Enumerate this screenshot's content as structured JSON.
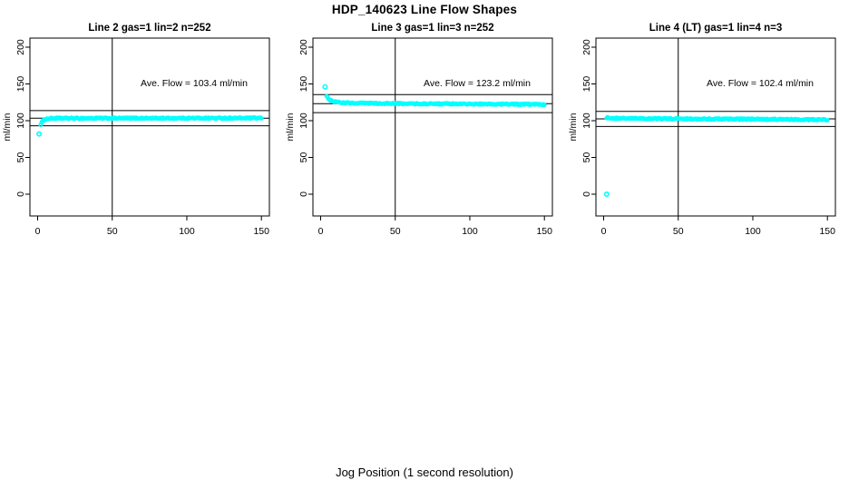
{
  "figure": {
    "title": "HDP_140623  Line Flow Shapes",
    "xlabel": "Jog Position (1 second resolution)"
  },
  "chart_data": {
    "type": "scatter",
    "title": "HDP_140623  Line Flow Shapes",
    "xlabel": "Jog Position (1 second resolution)",
    "ylabel": "ml/min",
    "x_ticks": [
      0,
      50,
      100,
      150
    ],
    "y_ticks": [
      0,
      50,
      100,
      150,
      200
    ],
    "xlim": [
      -5,
      155
    ],
    "ylim": [
      -30,
      213
    ],
    "grid": false,
    "point_color": "#00FFFF",
    "line_color": "#000000",
    "vline_x": 50,
    "panels": [
      {
        "title": "Line 2 gas=1 lin=2 n=252",
        "ave_flow_label": "Ave. Flow =  103.4  ml/min",
        "mean": 103.4,
        "ref_lines": [
          113.7,
          93.1
        ],
        "outliers": [
          [
            1,
            82
          ]
        ],
        "trend": [
          [
            2,
            95
          ],
          [
            3,
            98.5
          ],
          [
            4,
            100.5
          ],
          [
            5,
            101.8
          ],
          [
            7,
            102.8
          ],
          [
            10,
            103.2
          ],
          [
            150,
            103.5
          ]
        ],
        "n_points": 250,
        "x_start": 2,
        "x_end": 150
      },
      {
        "title": "Line 3 gas=1 lin=3 n=252",
        "ave_flow_label": "Ave. Flow =  123.2  ml/min",
        "mean": 123.2,
        "ref_lines": [
          135.5,
          110.9
        ],
        "outliers": [
          [
            3,
            146
          ]
        ],
        "trend": [
          [
            4,
            134
          ],
          [
            5,
            130.5
          ],
          [
            6,
            128.5
          ],
          [
            8,
            126.5
          ],
          [
            12,
            125
          ],
          [
            20,
            124
          ],
          [
            50,
            123.2
          ],
          [
            150,
            122.2
          ]
        ],
        "n_points": 248,
        "x_start": 4,
        "x_end": 150
      },
      {
        "title": "Line 4 (LT) gas=1 lin=4 n=3",
        "ave_flow_label": "Ave. Flow =  102.4  ml/min",
        "mean": 102.4,
        "ref_lines": [
          112.6,
          92.2
        ],
        "outliers": [
          [
            2,
            0
          ]
        ],
        "trend": [
          [
            2,
            104
          ],
          [
            10,
            103.2
          ],
          [
            40,
            102.6
          ],
          [
            100,
            102
          ],
          [
            150,
            101.3
          ]
        ],
        "n_points": 250,
        "x_start": 2,
        "x_end": 150
      }
    ]
  }
}
